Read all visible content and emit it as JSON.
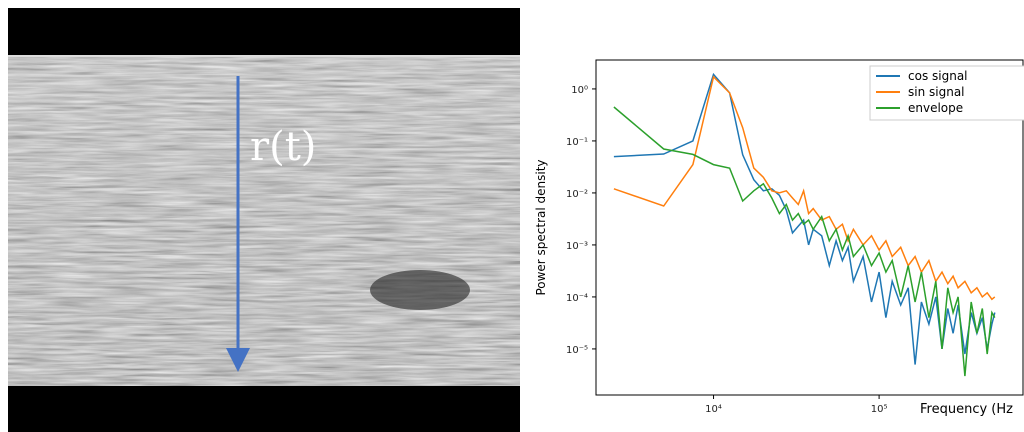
{
  "image_annotation": "r(t)",
  "chart_data": {
    "type": "line",
    "x_label": "Frequency (Hz",
    "y_label": "Power spectral density",
    "xscale": "log",
    "yscale": "log",
    "legend": "upper right",
    "xlim": [
      1950,
      740000
    ],
    "ylim": [
      1.3e-06,
      3.6
    ],
    "xticks": [
      {
        "value": 10000,
        "label": "10⁴"
      },
      {
        "value": 100000,
        "label": "10⁵"
      }
    ],
    "yticks": [
      {
        "value": 1e-05,
        "label": "10⁻⁵"
      },
      {
        "value": 0.0001,
        "label": "10⁻⁴"
      },
      {
        "value": 0.001,
        "label": "10⁻³"
      },
      {
        "value": 0.01,
        "label": "10⁻²"
      },
      {
        "value": 0.1,
        "label": "10⁻¹"
      },
      {
        "value": 1,
        "label": "10⁰"
      }
    ],
    "x": [
      2500,
      5000,
      7500,
      10000,
      12500,
      15000,
      17500,
      20000,
      22500,
      25000,
      27500,
      30000,
      32500,
      35000,
      37500,
      40000,
      45000,
      50000,
      55000,
      60000,
      65000,
      70000,
      80000,
      90000,
      100000,
      110000,
      120000,
      135000,
      150000,
      165000,
      180000,
      200000,
      220000,
      240000,
      260000,
      280000,
      300000,
      330000,
      360000,
      390000,
      420000,
      450000,
      480000,
      500000
    ],
    "series": [
      {
        "name": "cos signal",
        "color": "#1f77b4",
        "values": [
          0.05,
          0.056,
          0.1,
          1.9,
          0.84,
          0.054,
          0.018,
          0.011,
          0.012,
          0.009,
          0.0047,
          0.0017,
          0.0023,
          0.003,
          0.001,
          0.002,
          0.0015,
          0.0004,
          0.0012,
          0.0005,
          0.0009,
          0.0002,
          0.0006,
          8e-05,
          0.0003,
          4e-05,
          0.0002,
          7e-05,
          0.00015,
          5e-06,
          8e-05,
          3e-05,
          0.0001,
          1e-05,
          6e-05,
          2e-05,
          7e-05,
          8e-06,
          5e-05,
          2e-05,
          4e-05,
          1e-05,
          3e-05,
          5e-05
        ]
      },
      {
        "name": "sin signal",
        "color": "#ff7f0e",
        "values": [
          0.012,
          0.0056,
          0.035,
          1.7,
          0.84,
          0.18,
          0.03,
          0.02,
          0.011,
          0.01,
          0.011,
          0.008,
          0.006,
          0.011,
          0.004,
          0.005,
          0.003,
          0.0035,
          0.002,
          0.0025,
          0.0012,
          0.002,
          0.001,
          0.0015,
          0.0008,
          0.0012,
          0.0006,
          0.0009,
          0.0004,
          0.0006,
          0.0003,
          0.0005,
          0.0002,
          0.0003,
          0.00018,
          0.00025,
          0.00015,
          0.0002,
          0.00012,
          0.00015,
          0.0001,
          0.00012,
          9e-05,
          0.0001
        ]
      },
      {
        "name": "envelope",
        "color": "#2ca02c",
        "values": [
          0.45,
          0.07,
          0.055,
          0.035,
          0.03,
          0.007,
          0.011,
          0.015,
          0.008,
          0.004,
          0.006,
          0.003,
          0.004,
          0.0025,
          0.003,
          0.002,
          0.0035,
          0.0012,
          0.002,
          0.0008,
          0.0015,
          0.0006,
          0.001,
          0.0004,
          0.0007,
          0.0003,
          0.0005,
          0.0001,
          0.0004,
          8e-05,
          0.0003,
          4e-05,
          0.0002,
          1e-05,
          0.00015,
          5e-05,
          0.0001,
          3e-06,
          8e-05,
          2e-05,
          6e-05,
          8e-06,
          5e-05,
          4e-05
        ]
      }
    ]
  }
}
